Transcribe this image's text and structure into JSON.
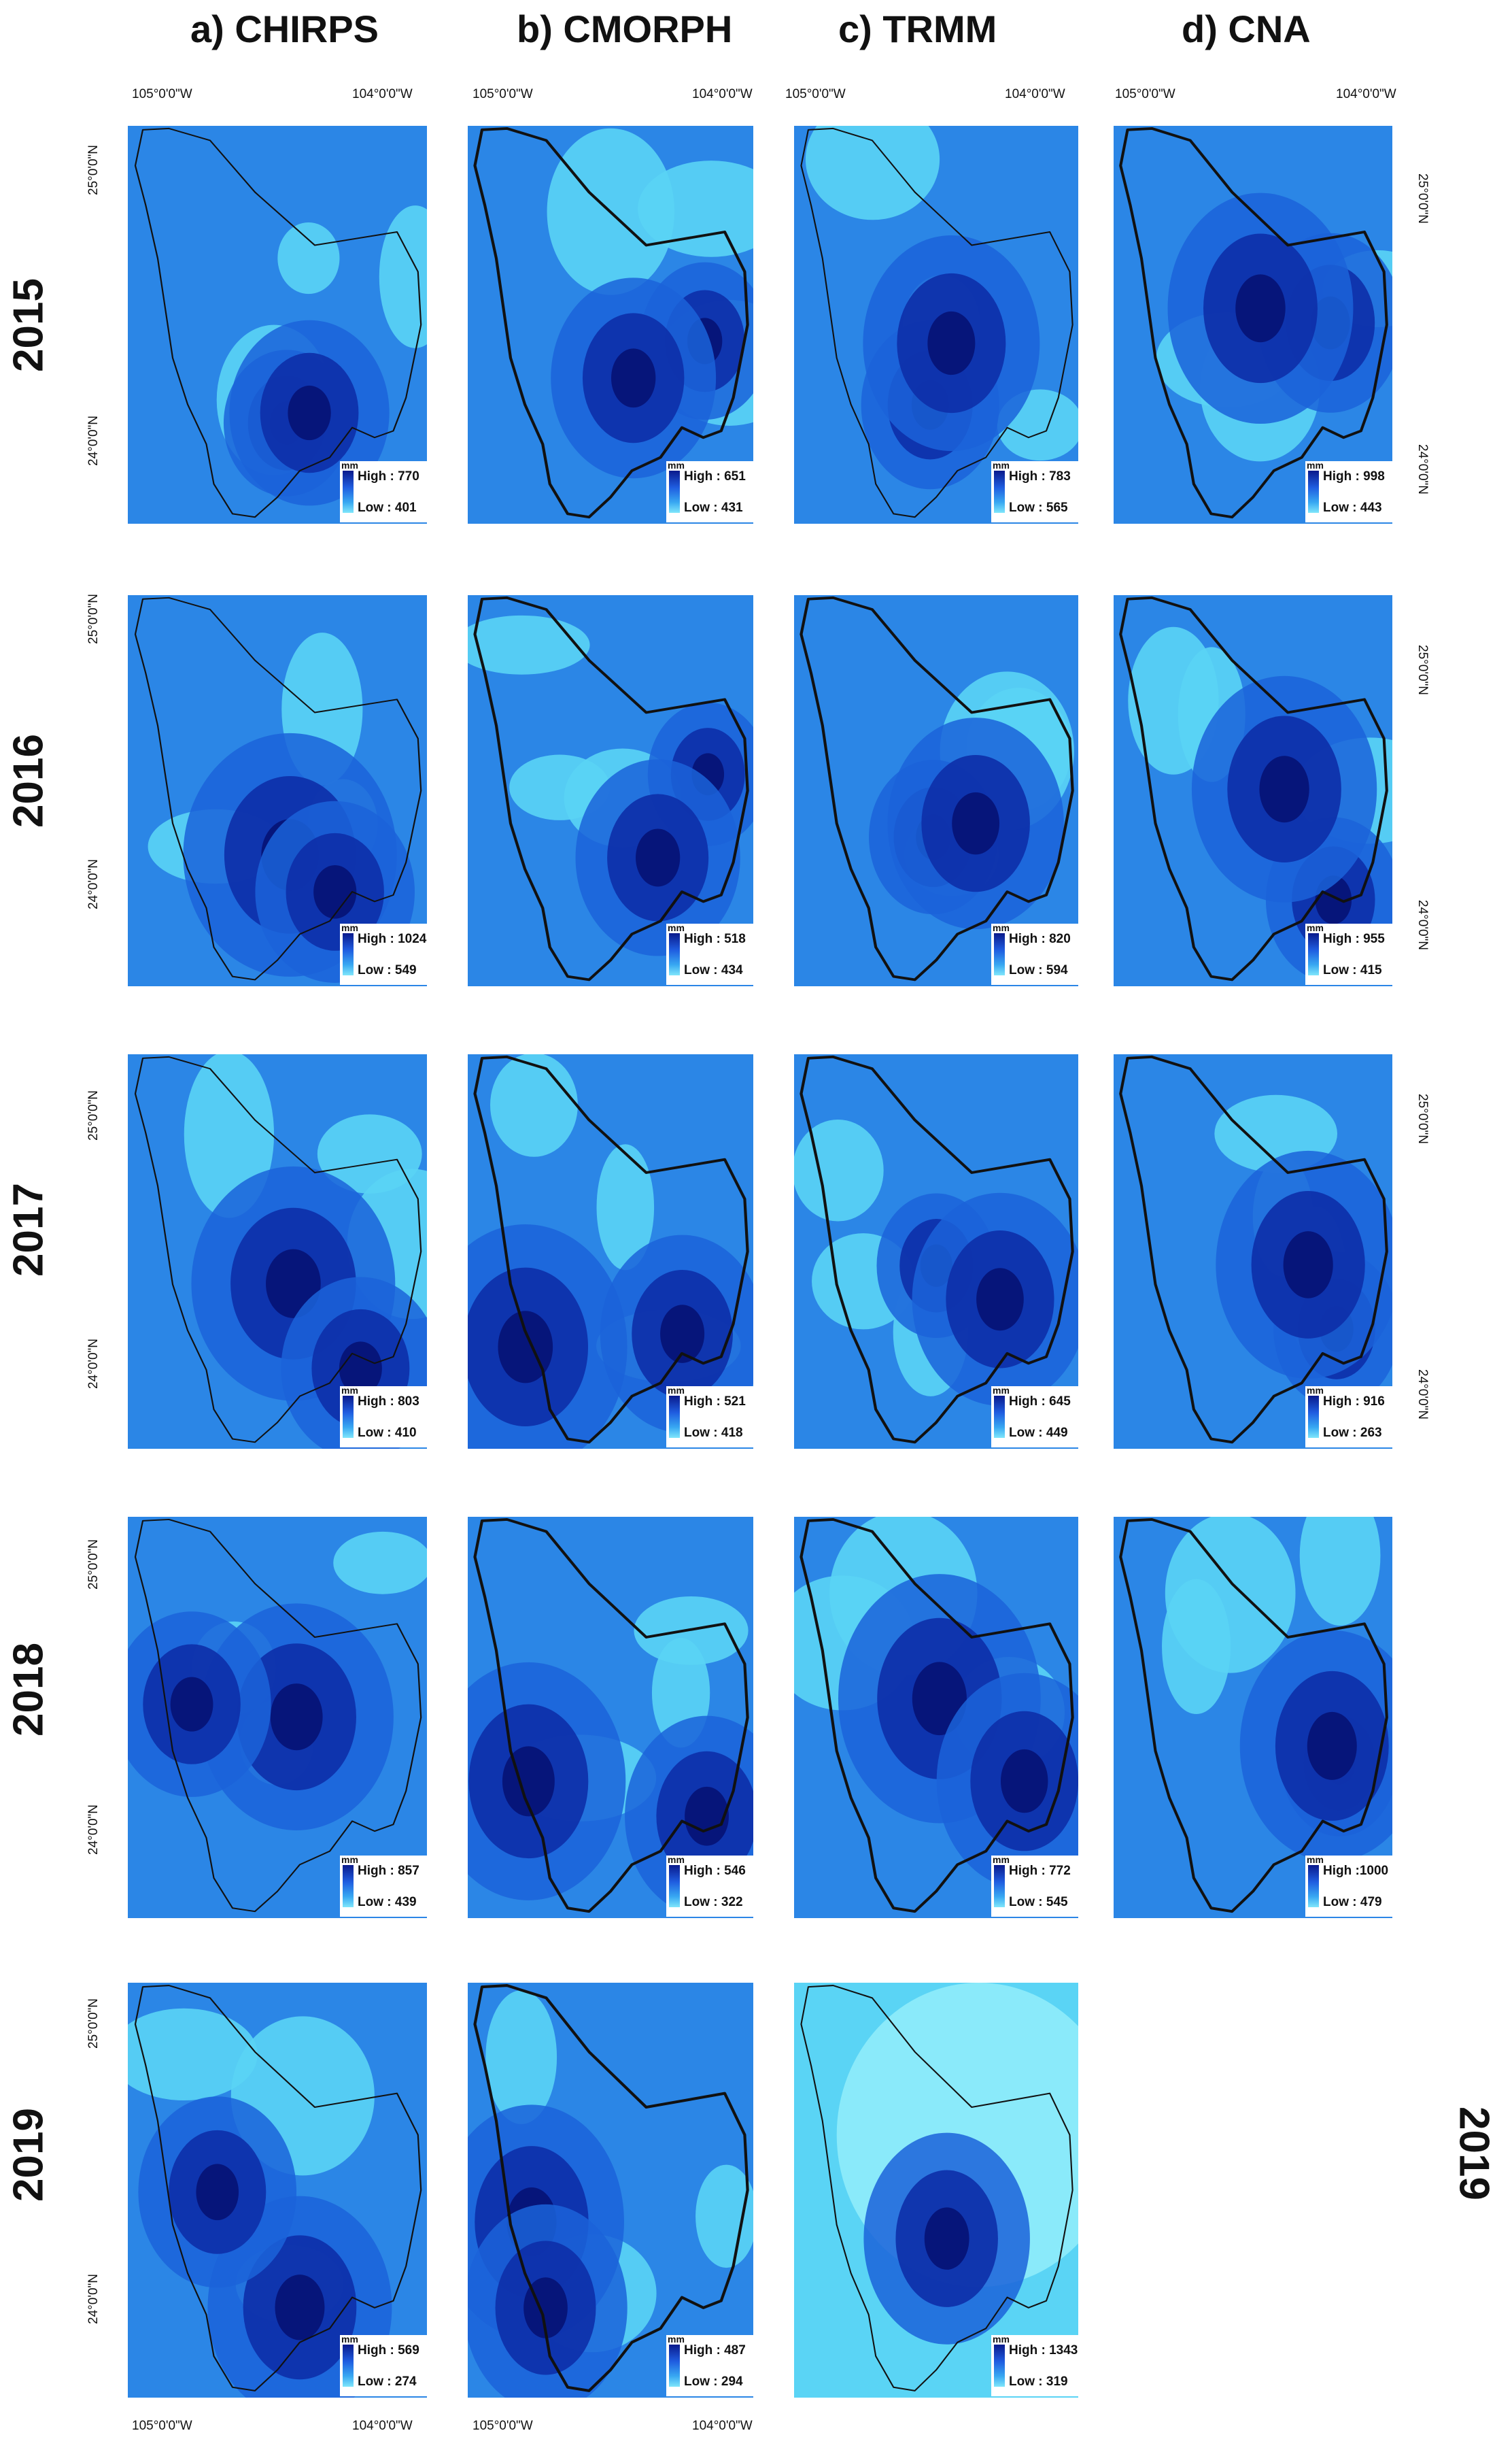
{
  "columns": [
    {
      "id": "chirps",
      "title": "a) CHIRPS"
    },
    {
      "id": "cmorph",
      "title": "b) CMORPH"
    },
    {
      "id": "trmm",
      "title": "c) TRMM"
    },
    {
      "id": "cna",
      "title": "d) CNA"
    }
  ],
  "years": [
    "2015",
    "2016",
    "2017",
    "2018",
    "2019"
  ],
  "right_year_label": "2019",
  "legend_unit": "mm",
  "axis_labels": {
    "lon_west": "105°0'0\"W",
    "lon_east": "104°0'0\"W",
    "lat_north": "25°0'0\"N",
    "lat_south": "24°0'0\"N"
  },
  "ranges": [
    [
      {
        "high": "High : 770",
        "low": "Low : 401"
      },
      {
        "high": "High : 651",
        "low": "Low : 431"
      },
      {
        "high": "High : 783",
        "low": "Low : 565"
      },
      {
        "high": "High : 998",
        "low": "Low : 443"
      }
    ],
    [
      {
        "high": "High : 1024",
        "low": "Low : 549"
      },
      {
        "high": "High : 518",
        "low": "Low : 434"
      },
      {
        "high": "High : 820",
        "low": "Low : 594"
      },
      {
        "high": "High : 955",
        "low": "Low : 415"
      }
    ],
    [
      {
        "high": "High : 803",
        "low": "Low : 410"
      },
      {
        "high": "High : 521",
        "low": "Low : 418"
      },
      {
        "high": "High : 645",
        "low": "Low : 449"
      },
      {
        "high": "High : 916",
        "low": "Low : 263"
      }
    ],
    [
      {
        "high": "High : 857",
        "low": "Low : 439"
      },
      {
        "high": "High : 546",
        "low": "Low : 322"
      },
      {
        "high": "High : 772",
        "low": "Low : 545"
      },
      {
        "high": "High :1000",
        "low": "Low : 479"
      }
    ],
    [
      {
        "high": "High : 569",
        "low": "Low : 274"
      },
      {
        "high": "High : 487",
        "low": "Low : 294"
      },
      {
        "high": "High : 1343",
        "low": "Low : 319"
      },
      null
    ]
  ],
  "colors": {
    "background": "#2b86e6",
    "light": "#5ad4f5",
    "lightest": "#8fecfb",
    "medium": "#1b63d9",
    "dark": "#0d2fa8",
    "darkest": "#06157a",
    "boundary": "#111111"
  }
}
